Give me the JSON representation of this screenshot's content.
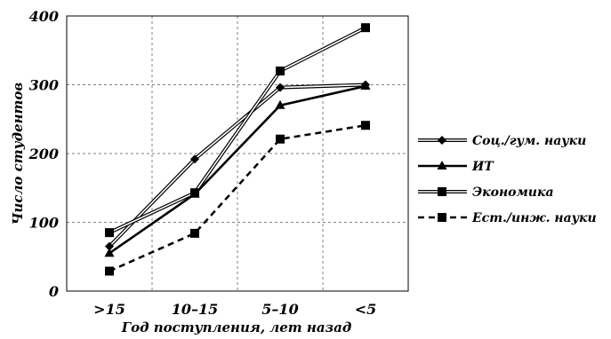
{
  "chart_data": {
    "type": "line",
    "categories": [
      ">15",
      "10–15",
      "5–10",
      "<5"
    ],
    "ylabel": "Число студентов",
    "xlabel": "Год поступления, лет назад",
    "ylim": [
      0,
      400
    ],
    "yticks": [
      "0",
      "100",
      "200",
      "300",
      "400"
    ],
    "grid": true,
    "legend_position": "right",
    "series": [
      {
        "name": "Соц./гум. науки",
        "values": [
          65,
          192,
          296,
          300
        ],
        "style": "double",
        "marker": "diamond",
        "color": "#000000"
      },
      {
        "name": "ИТ",
        "values": [
          55,
          141,
          270,
          298
        ],
        "style": "solid",
        "marker": "triangle",
        "color": "#000000"
      },
      {
        "name": "Экономика",
        "values": [
          85,
          143,
          320,
          383
        ],
        "style": "double",
        "marker": "square",
        "color": "#000000"
      },
      {
        "name": "Ест./инж. науки",
        "values": [
          29,
          84,
          221,
          241
        ],
        "style": "dashed",
        "marker": "square",
        "color": "#000000"
      }
    ]
  }
}
